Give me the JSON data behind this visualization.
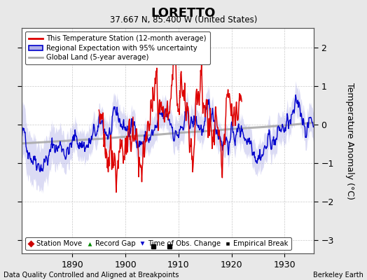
{
  "title": "LORETTO",
  "subtitle": "37.667 N, 85.400 W (United States)",
  "ylabel": "Temperature Anomaly (°C)",
  "xlabel_left": "Data Quality Controlled and Aligned at Breakpoints",
  "xlabel_right": "Berkeley Earth",
  "xlim": [
    1880.5,
    1935.5
  ],
  "ylim": [
    -3.35,
    2.5
  ],
  "yticks": [
    -3,
    -2,
    -1,
    0,
    1,
    2
  ],
  "xticks": [
    1890,
    1900,
    1910,
    1920,
    1930
  ],
  "empirical_breaks": [
    1905.3,
    1908.3
  ],
  "bg_color": "#e8e8e8",
  "plot_bg_color": "#ffffff",
  "grid_color": "#bbbbbb",
  "red_line_color": "#dd0000",
  "blue_line_color": "#0000cc",
  "blue_fill_color": "#b0b0e8",
  "gray_line_color": "#aaaaaa",
  "seed": 42
}
